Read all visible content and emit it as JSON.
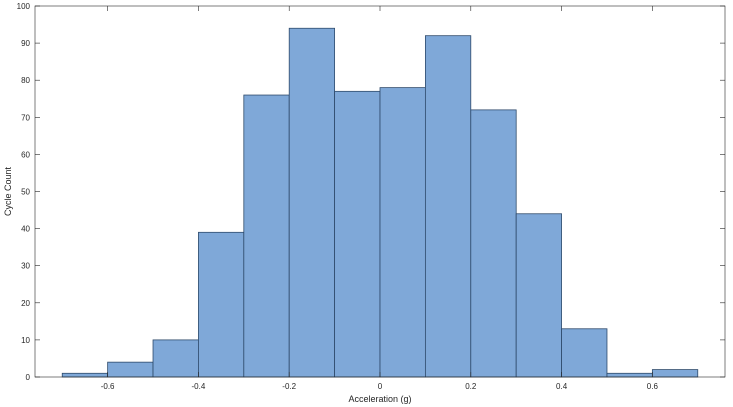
{
  "chart_data": {
    "type": "bar",
    "xlabel": "Acceleration (g)",
    "ylabel": "Cycle Count",
    "xlim": [
      -0.76,
      0.76
    ],
    "ylim": [
      0,
      100
    ],
    "xticks": [
      -0.6,
      -0.4,
      -0.2,
      0,
      0.2,
      0.4,
      0.6
    ],
    "xtick_labels": [
      "-0.6",
      "-0.4",
      "-0.2",
      "0",
      "0.2",
      "0.4",
      "0.6"
    ],
    "yticks": [
      0,
      10,
      20,
      30,
      40,
      50,
      60,
      70,
      80,
      90,
      100
    ],
    "ytick_labels": [
      "0",
      "10",
      "20",
      "30",
      "40",
      "50",
      "60",
      "70",
      "80",
      "90",
      "100"
    ],
    "bins": [
      {
        "x0": -0.7,
        "x1": -0.6,
        "count": 1
      },
      {
        "x0": -0.6,
        "x1": -0.5,
        "count": 4
      },
      {
        "x0": -0.5,
        "x1": -0.4,
        "count": 10
      },
      {
        "x0": -0.4,
        "x1": -0.3,
        "count": 39
      },
      {
        "x0": -0.3,
        "x1": -0.2,
        "count": 76
      },
      {
        "x0": -0.2,
        "x1": -0.1,
        "count": 94
      },
      {
        "x0": -0.1,
        "x1": 0.0,
        "count": 77
      },
      {
        "x0": 0.0,
        "x1": 0.1,
        "count": 78
      },
      {
        "x0": 0.1,
        "x1": 0.2,
        "count": 92
      },
      {
        "x0": 0.2,
        "x1": 0.3,
        "count": 72
      },
      {
        "x0": 0.3,
        "x1": 0.4,
        "count": 44
      },
      {
        "x0": 0.4,
        "x1": 0.5,
        "count": 13
      },
      {
        "x0": 0.5,
        "x1": 0.6,
        "count": 1
      },
      {
        "x0": 0.6,
        "x1": 0.7,
        "count": 2
      }
    ],
    "grid": false,
    "bar_fill": "#7fa8d8",
    "bar_edge": "#2e4a6b",
    "axis_color": "#262626"
  }
}
